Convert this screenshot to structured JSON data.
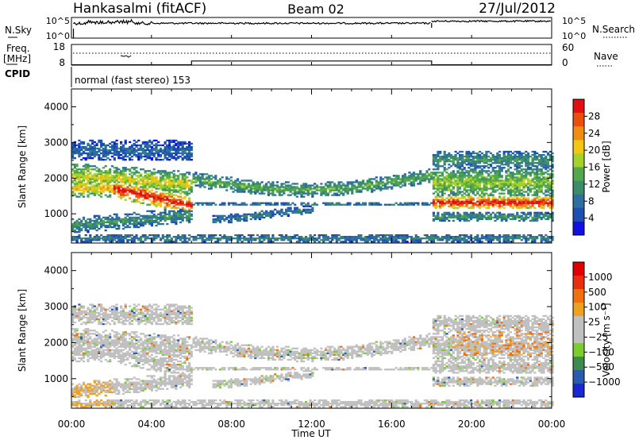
{
  "header": {
    "title": "Hankasalmi (fitACF)",
    "beam": "Beam 02",
    "date": "27/Jul/2012"
  },
  "chart_data": [
    {
      "type": "line",
      "name": "noise-panel",
      "left_label": "N.Sky",
      "right_label": "N.Search",
      "left_ticks": [
        "10^5",
        "10^0"
      ],
      "right_ticks": [
        "10^5",
        "10^0"
      ],
      "x_range_hours": [
        0,
        24
      ],
      "sky_segments": [
        {
          "start": 0.1,
          "end": 18.0,
          "level": 0.72
        },
        {
          "start": 18.0,
          "end": 24.0,
          "level": 0.82
        }
      ]
    },
    {
      "type": "line",
      "name": "freq-panel",
      "left_label": "Freq.",
      "left_unit": "[MHz]",
      "right_label": "Nave",
      "left_ticks": [
        "18",
        "8"
      ],
      "right_ticks": [
        "60",
        "0"
      ],
      "cpid_label": "CPID",
      "cpid_text": "normal (fast stereo) 153",
      "nave_segments": [
        {
          "start": 0.0,
          "end": 6.0,
          "value": 1
        },
        {
          "start": 6.0,
          "end": 18.0,
          "value": 12
        },
        {
          "start": 18.0,
          "end": 24.0,
          "value": 1
        }
      ]
    },
    {
      "type": "heatmap",
      "name": "power-panel",
      "ylabel": "Slant Range [km]",
      "yticks": [
        "4000",
        "3000",
        "2000",
        "1000"
      ],
      "ylim": [
        180,
        4500
      ],
      "colorbar_label": "Power [dB]",
      "colorbar_ticks": [
        "28",
        "24",
        "20",
        "16",
        "12",
        "8",
        "4"
      ],
      "colorbar_range": [
        0,
        30
      ],
      "colors": [
        "#1010e0",
        "#1d4fb0",
        "#2f6fa0",
        "#3b8c6a",
        "#52a84a",
        "#a4d12a",
        "#f3c514",
        "#f08c14",
        "#e85010",
        "#e01010"
      ]
    },
    {
      "type": "heatmap",
      "name": "velocity-panel",
      "ylabel": "Slant Range [km]",
      "yticks": [
        "4000",
        "3000",
        "2000",
        "1000"
      ],
      "ylim": [
        180,
        4500
      ],
      "colorbar_label": "Velocity [m s⁻¹]",
      "colorbar_ticks": [
        "1000",
        "500",
        "100",
        "25",
        "−25",
        "−100",
        "−500",
        "−1000"
      ],
      "colors": [
        "#1a28d0",
        "#2a5bb0",
        "#3c8c4c",
        "#7ccc30",
        "#c0c0c0",
        "#c0c0c0",
        "#f0a020",
        "#f07010",
        "#e83010",
        "#e00000"
      ],
      "xticks": [
        "00:00",
        "04:00",
        "08:00",
        "12:00",
        "16:00",
        "20:00",
        "00:00"
      ],
      "xlabel": "Time UT",
      "x_range_hours": [
        0,
        24
      ]
    }
  ]
}
